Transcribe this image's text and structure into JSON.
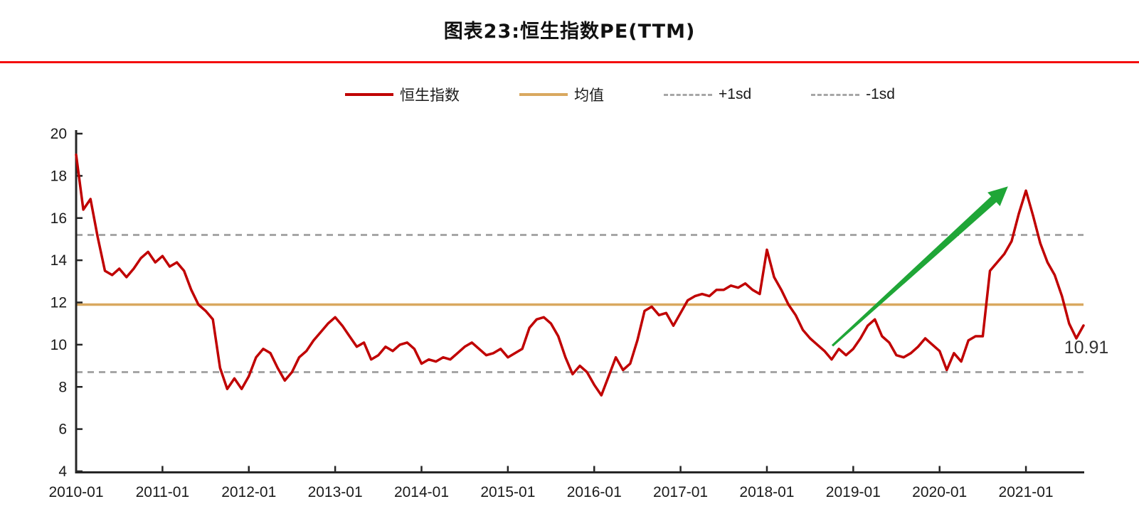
{
  "title": "图表23:恒生指数PE(TTM)",
  "accent_rule_color": "#f40d0d",
  "legend": [
    {
      "label": "恒生指数",
      "type": "solid",
      "color": "#C00000"
    },
    {
      "label": "均值",
      "type": "solid",
      "color": "#D9A85F"
    },
    {
      "label": "+1sd",
      "type": "dashed",
      "color": "#A6A6A6"
    },
    {
      "label": "-1sd",
      "type": "dashed",
      "color": "#A6A6A6"
    }
  ],
  "annotation": {
    "end_label": "10.91",
    "end_label_color": "#333333",
    "arrow": {
      "color": "#1FA637",
      "from": {
        "month_index": 105.1,
        "value": 9.95
      },
      "to": {
        "month_index": 129.5,
        "value": 17.5
      }
    }
  },
  "chart_data": {
    "type": "line",
    "title": "恒生指数PE(TTM)",
    "x_start": "2010-01",
    "x_frequency": "monthly",
    "x_tick_labels": [
      "2010-01",
      "2011-01",
      "2012-01",
      "2013-01",
      "2014-01",
      "2015-01",
      "2016-01",
      "2017-01",
      "2018-01",
      "2019-01",
      "2020-01",
      "2021-01"
    ],
    "ylim": [
      4,
      20
    ],
    "y_ticks": [
      20,
      18,
      16,
      14,
      12,
      10,
      8,
      6,
      4
    ],
    "grid": false,
    "legend_position": "top",
    "reference_lines": {
      "mean": 11.9,
      "plus_1sd": 15.2,
      "minus_1sd": 8.7
    },
    "last_value": 10.91,
    "series": [
      {
        "name": "恒生指数",
        "color": "#C00000",
        "values": [
          19.0,
          16.4,
          16.9,
          15.1,
          13.5,
          13.3,
          13.6,
          13.2,
          13.6,
          14.1,
          14.4,
          13.9,
          14.2,
          13.7,
          13.9,
          13.5,
          12.6,
          11.9,
          11.6,
          11.2,
          8.9,
          7.9,
          8.4,
          7.9,
          8.5,
          9.4,
          9.8,
          9.6,
          8.9,
          8.3,
          8.7,
          9.4,
          9.7,
          10.2,
          10.6,
          11.0,
          11.3,
          10.9,
          10.4,
          9.9,
          10.1,
          9.3,
          9.5,
          9.9,
          9.7,
          10.0,
          10.1,
          9.8,
          9.1,
          9.3,
          9.2,
          9.4,
          9.3,
          9.6,
          9.9,
          10.1,
          9.8,
          9.5,
          9.6,
          9.8,
          9.4,
          9.6,
          9.8,
          10.8,
          11.2,
          11.3,
          11.0,
          10.4,
          9.4,
          8.6,
          9.0,
          8.7,
          8.1,
          7.6,
          8.5,
          9.4,
          8.8,
          9.1,
          10.2,
          11.6,
          11.8,
          11.4,
          11.5,
          10.9,
          11.5,
          12.1,
          12.3,
          12.4,
          12.3,
          12.6,
          12.6,
          12.8,
          12.7,
          12.9,
          12.6,
          12.4,
          14.5,
          13.2,
          12.6,
          11.9,
          11.4,
          10.7,
          10.3,
          10.0,
          9.7,
          9.3,
          9.8,
          9.5,
          9.8,
          10.3,
          10.9,
          11.2,
          10.4,
          10.1,
          9.5,
          9.4,
          9.6,
          9.9,
          10.3,
          10.0,
          9.7,
          8.8,
          9.6,
          9.2,
          10.2,
          10.4,
          10.4,
          13.5,
          13.9,
          14.3,
          14.9,
          16.2,
          17.3,
          16.1,
          14.8,
          13.9,
          13.3,
          12.3,
          11.0,
          10.3,
          10.91
        ]
      }
    ]
  }
}
